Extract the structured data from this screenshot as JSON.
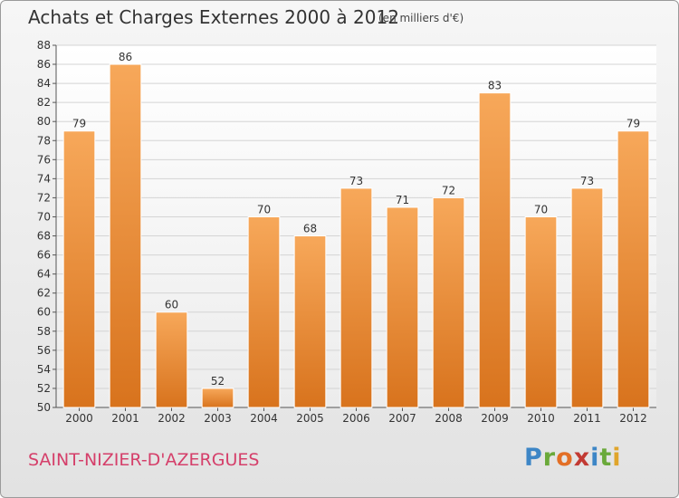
{
  "title": "Achats et Charges Externes 2000 à 2012",
  "unit_note": "(en milliers d'€)",
  "place_name": "SAINT-NIZIER-D'AZERGUES",
  "logo_text": "Proxiti",
  "colors": {
    "bar_top": "#f7a85a",
    "bar_bottom": "#d8731d",
    "place": "#d53f6a"
  },
  "chart_data": {
    "type": "bar",
    "title": "Achats et Charges Externes 2000 à 2012",
    "categories": [
      "2000",
      "2001",
      "2002",
      "2003",
      "2004",
      "2005",
      "2006",
      "2007",
      "2008",
      "2009",
      "2010",
      "2011",
      "2012"
    ],
    "values": [
      79,
      86,
      60,
      52,
      70,
      68,
      73,
      71,
      72,
      83,
      70,
      73,
      79
    ],
    "ylim": [
      50,
      88
    ],
    "yticks": [
      50,
      52,
      54,
      56,
      58,
      60,
      62,
      64,
      66,
      68,
      70,
      72,
      74,
      76,
      78,
      80,
      82,
      84,
      86,
      88
    ],
    "xlabel": "",
    "ylabel": "",
    "grid": true
  }
}
